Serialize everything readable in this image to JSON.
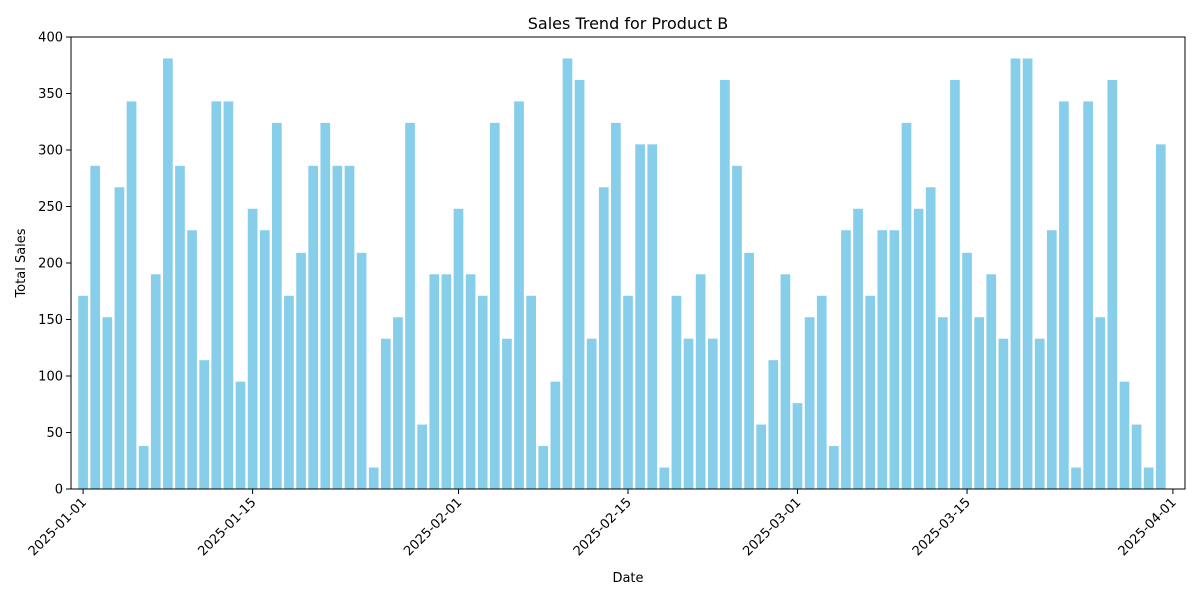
{
  "chart_data": {
    "type": "bar",
    "title": "Sales Trend for Product B",
    "xlabel": "Date",
    "ylabel": "Total Sales",
    "ylim": [
      0,
      400
    ],
    "yticks": [
      0,
      50,
      100,
      150,
      200,
      250,
      300,
      350,
      400
    ],
    "x_start": "2024-12-31",
    "x_end": "2025-04-02",
    "xticks": [
      "2025-01-01",
      "2025-01-15",
      "2025-02-01",
      "2025-02-15",
      "2025-03-01",
      "2025-03-15",
      "2025-04-01"
    ],
    "grid": false,
    "bar_color": "#87ceeb",
    "series": [
      {
        "x": [
          "2025-01-01",
          "2025-01-02",
          "2025-01-03",
          "2025-01-04",
          "2025-01-05",
          "2025-01-06",
          "2025-01-07",
          "2025-01-08",
          "2025-01-09",
          "2025-01-10",
          "2025-01-11",
          "2025-01-12",
          "2025-01-13",
          "2025-01-14",
          "2025-01-15",
          "2025-01-16",
          "2025-01-17",
          "2025-01-18",
          "2025-01-19",
          "2025-01-20",
          "2025-01-21",
          "2025-01-22",
          "2025-01-23",
          "2025-01-24",
          "2025-01-25",
          "2025-01-26",
          "2025-01-27",
          "2025-01-28",
          "2025-01-29",
          "2025-01-30",
          "2025-01-31",
          "2025-02-01",
          "2025-02-02",
          "2025-02-03",
          "2025-02-04",
          "2025-02-05",
          "2025-02-06",
          "2025-02-07",
          "2025-02-08",
          "2025-02-09",
          "2025-02-10",
          "2025-02-11",
          "2025-02-12",
          "2025-02-13",
          "2025-02-14",
          "2025-02-15",
          "2025-02-16",
          "2025-02-17",
          "2025-02-18",
          "2025-02-19",
          "2025-02-20",
          "2025-02-21",
          "2025-02-22",
          "2025-02-23",
          "2025-02-24",
          "2025-02-25",
          "2025-02-26",
          "2025-02-27",
          "2025-02-28",
          "2025-03-01",
          "2025-03-02",
          "2025-03-03",
          "2025-03-04",
          "2025-03-05",
          "2025-03-06",
          "2025-03-07",
          "2025-03-08",
          "2025-03-09",
          "2025-03-10",
          "2025-03-11",
          "2025-03-12",
          "2025-03-13",
          "2025-03-14",
          "2025-03-15",
          "2025-03-16",
          "2025-03-17",
          "2025-03-18",
          "2025-03-19",
          "2025-03-20",
          "2025-03-21",
          "2025-03-22",
          "2025-03-23",
          "2025-03-24",
          "2025-03-25",
          "2025-03-26",
          "2025-03-27",
          "2025-03-28",
          "2025-03-29",
          "2025-03-30",
          "2025-03-31"
        ],
        "values": [
          171,
          286,
          152,
          267,
          343,
          38,
          190,
          381,
          286,
          229,
          114,
          343,
          343,
          95,
          248,
          229,
          324,
          171,
          209,
          286,
          324,
          286,
          286,
          209,
          19,
          133,
          152,
          324,
          57,
          190,
          190,
          248,
          190,
          171,
          324,
          133,
          343,
          171,
          38,
          95,
          381,
          362,
          133,
          267,
          324,
          171,
          305,
          305,
          19,
          171,
          133,
          190,
          133,
          362,
          286,
          209,
          57,
          114,
          190,
          76,
          152,
          171,
          38,
          229,
          248,
          171,
          229,
          229,
          324,
          248,
          267,
          152,
          362,
          209,
          152,
          190,
          133,
          381,
          381,
          133,
          229,
          343,
          19,
          343,
          152,
          362,
          95,
          57,
          19,
          305
        ]
      }
    ]
  }
}
